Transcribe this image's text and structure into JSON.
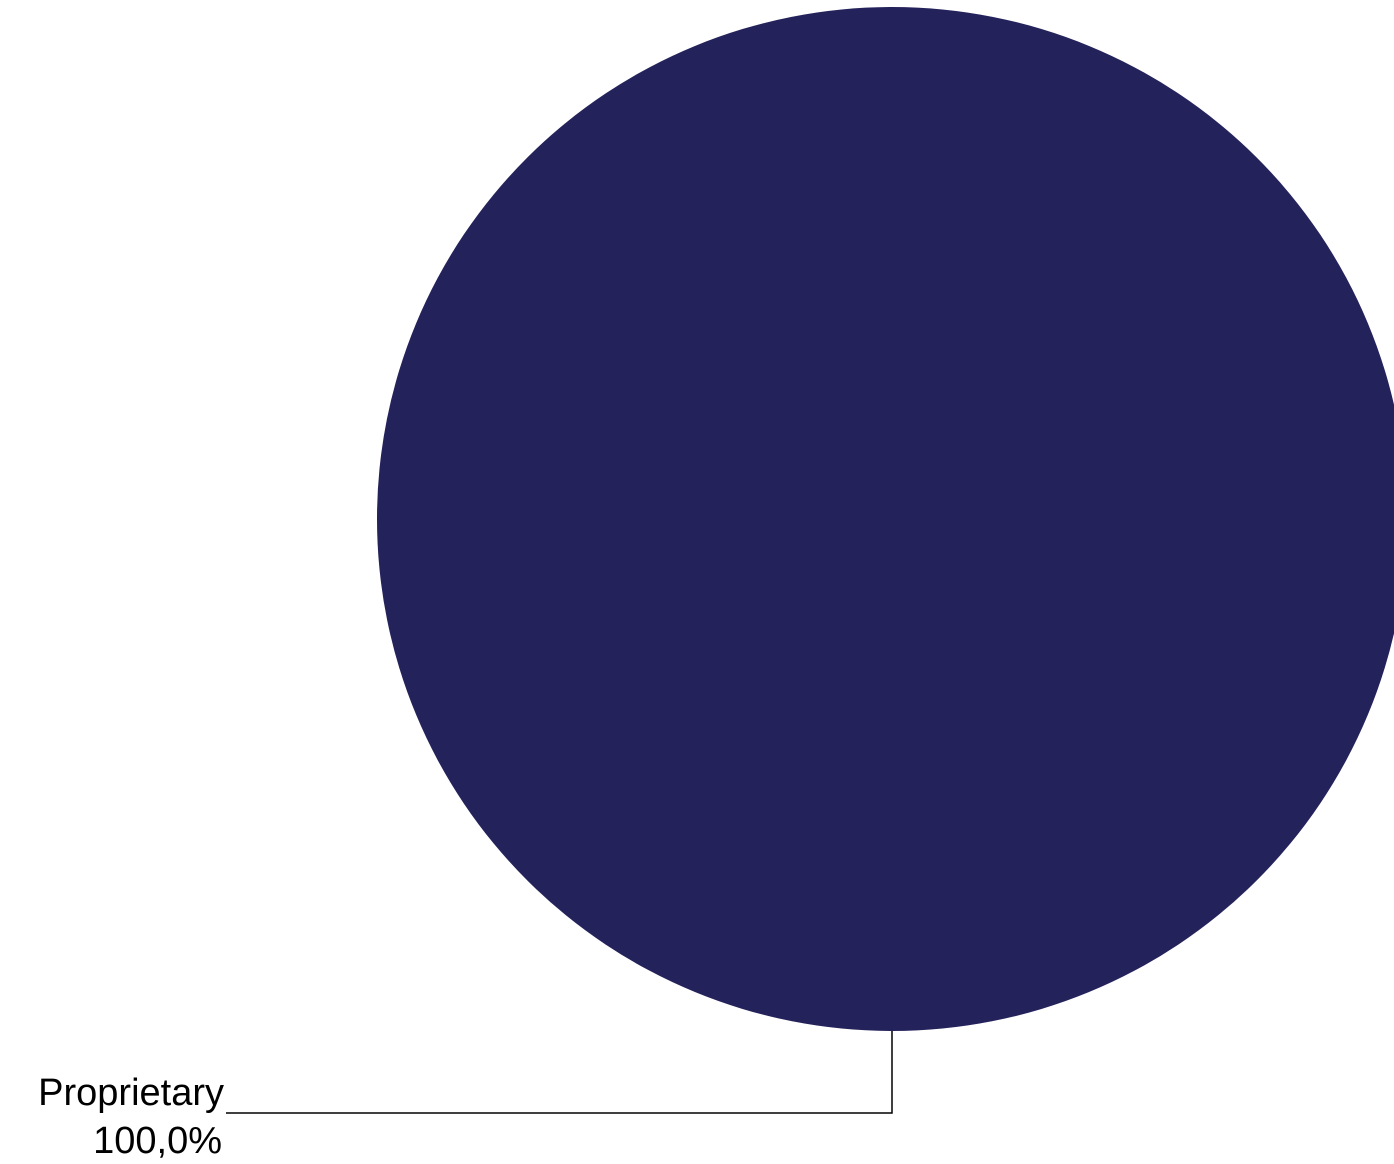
{
  "chart_data": {
    "type": "pie",
    "title": "",
    "slices": [
      {
        "label": "Proprietary",
        "value": 100.0,
        "value_label": "100,0%",
        "color": "#24225a"
      }
    ],
    "legend": "none"
  }
}
